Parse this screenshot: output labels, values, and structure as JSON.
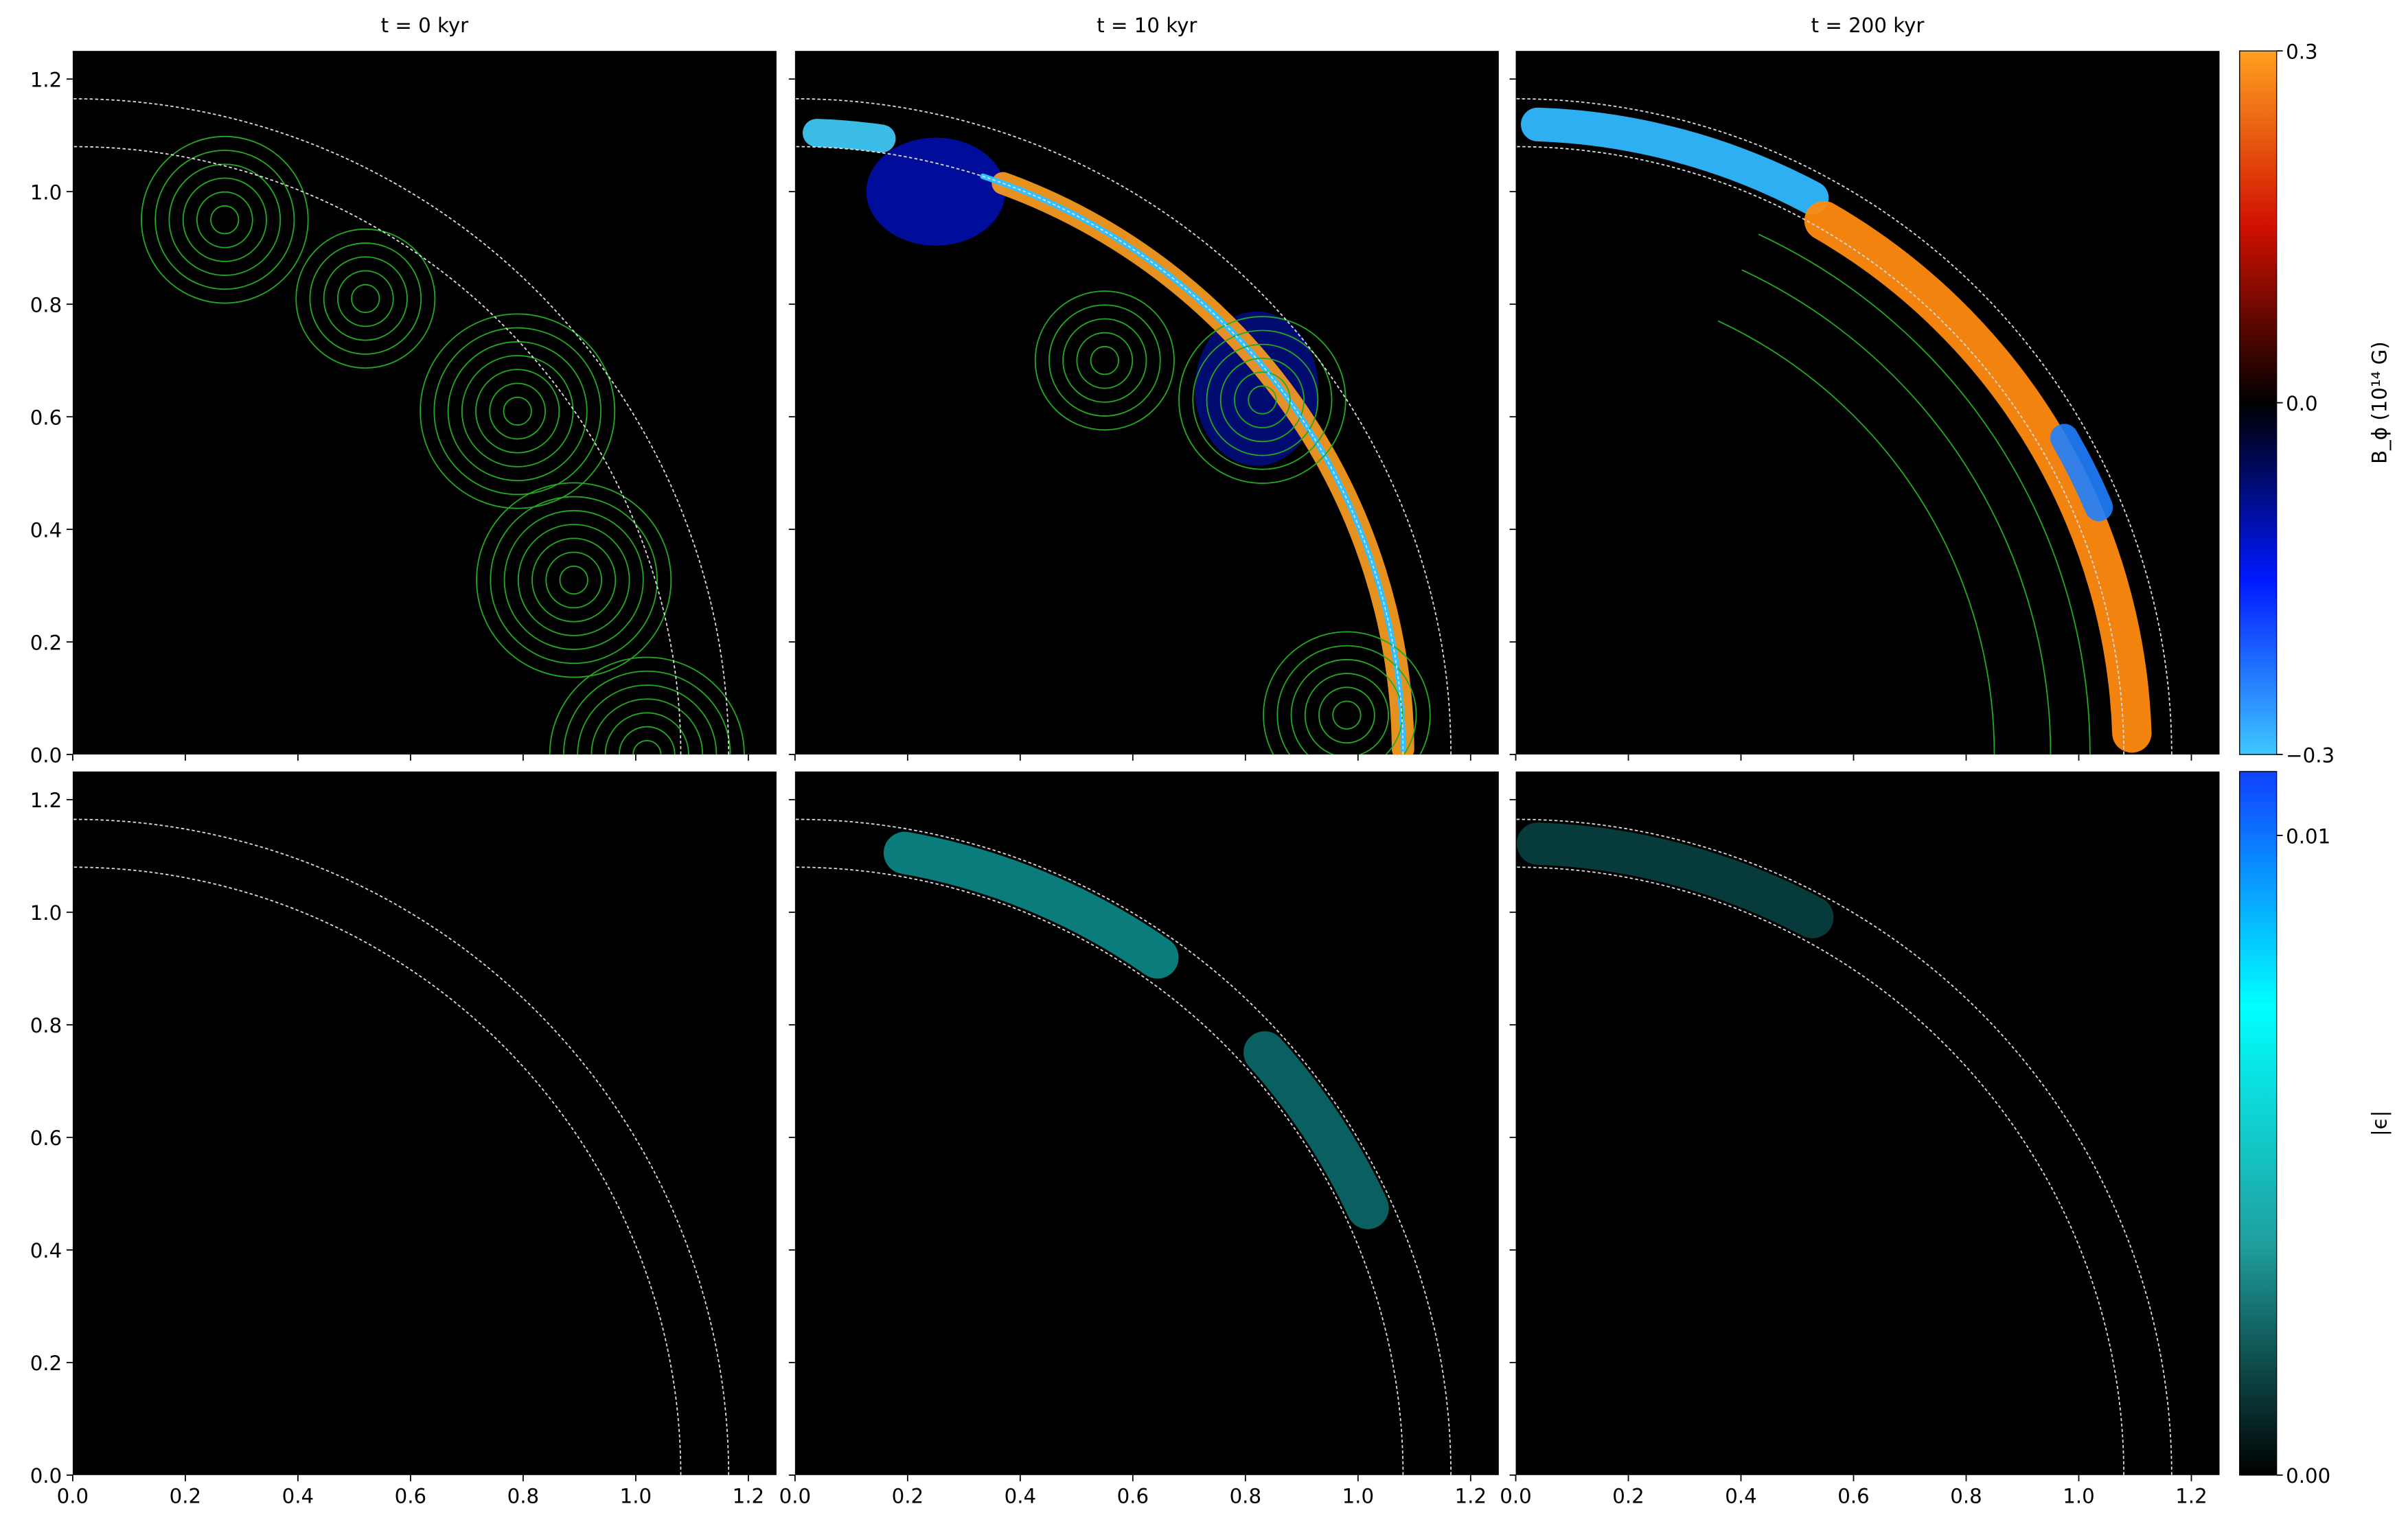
{
  "chart_data": {
    "type": "heatmap",
    "panel_titles": [
      "t = 0 kyr",
      "t = 10 kyr",
      "t = 200 kyr"
    ],
    "xlim": [
      0,
      1.25
    ],
    "ylim": [
      0,
      1.25
    ],
    "xticks": [
      {
        "value": 0,
        "label": "0.0"
      },
      0.2,
      0.4,
      0.6,
      0.8,
      {
        "value": 1,
        "label": "1.0"
      },
      1.2
    ],
    "yticks": [
      {
        "value": 0,
        "label": "0.0"
      },
      0.2,
      0.4,
      0.6,
      0.8,
      {
        "value": 1,
        "label": "1.0"
      },
      1.2
    ],
    "shell_radii": [
      1.08,
      1.165
    ],
    "colorbars": [
      {
        "label": "B_ϕ (10¹⁴ G)",
        "lim": [
          -0.3,
          0.3
        ],
        "ticks": [
          {
            "value": -0.3,
            "label": "−0.3"
          },
          {
            "value": 0,
            "label": "0.0"
          },
          0.3
        ],
        "colors": [
          "#40c8ff",
          "#0018ff",
          "#000000",
          "#d01000",
          "#ffa020"
        ]
      },
      {
        "label": "|ϵ|",
        "lim": [
          0,
          0.011
        ],
        "ticks": [
          {
            "value": 0,
            "label": "0.00"
          },
          0.01
        ],
        "colors": [
          "#000000",
          "#20a0a0",
          "#00ffff",
          "#1040ff"
        ]
      }
    ]
  }
}
